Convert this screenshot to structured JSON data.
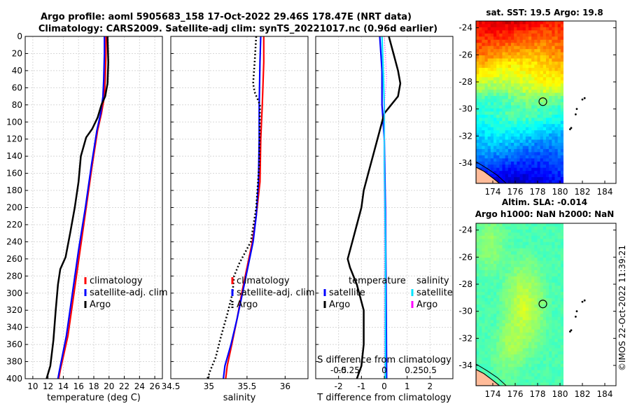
{
  "title": {
    "line1": "Argo profile: aoml 5905683_158 17-Oct-2022 29.46S 178.47E (NRT data)",
    "line2": "Climatology: CARS2009. Satellite-adj clim: synTS_20221017.nc (0.96d earlier)"
  },
  "copyright": "©IMOS 22-Oct-2022 11:39:21",
  "colors": {
    "climatology": "#ff0000",
    "satellite": "#0000ff",
    "argo": "#000000",
    "sat_s": "#00e5ff",
    "argo_s": "#ff00ff",
    "land": "#ffbb99"
  },
  "chart_data": [
    {
      "type": "line",
      "id": "temperature",
      "xlabel": "temperature (deg C)",
      "xlim": [
        9,
        27
      ],
      "xticks": [
        10,
        12,
        14,
        16,
        18,
        20,
        22,
        24,
        26
      ],
      "ylim": [
        400,
        0
      ],
      "yticks": [
        0,
        20,
        40,
        60,
        80,
        100,
        120,
        140,
        160,
        180,
        200,
        220,
        240,
        260,
        280,
        300,
        320,
        340,
        360,
        380,
        400
      ],
      "grid": true,
      "legend": {
        "entries": [
          "climatology",
          "satellite-adj. clim",
          "Argo"
        ],
        "placement": "lower-right"
      },
      "series": [
        {
          "name": "climatology",
          "color": "#ff0000",
          "style": "solid",
          "points": [
            [
              19.6,
              0
            ],
            [
              19.6,
              20
            ],
            [
              19.5,
              50
            ],
            [
              19.4,
              70
            ],
            [
              19.0,
              90
            ],
            [
              18.5,
              110
            ],
            [
              17.8,
              150
            ],
            [
              17.0,
              200
            ],
            [
              16.2,
              250
            ],
            [
              15.4,
              300
            ],
            [
              14.6,
              350
            ],
            [
              13.6,
              390
            ],
            [
              13.4,
              400
            ]
          ]
        },
        {
          "name": "satellite-adj. clim",
          "color": "#0000ff",
          "style": "solid",
          "points": [
            [
              19.4,
              0
            ],
            [
              19.4,
              20
            ],
            [
              19.3,
              50
            ],
            [
              19.2,
              70
            ],
            [
              18.9,
              90
            ],
            [
              18.4,
              110
            ],
            [
              17.7,
              150
            ],
            [
              16.9,
              200
            ],
            [
              16.0,
              250
            ],
            [
              15.2,
              300
            ],
            [
              14.4,
              350
            ],
            [
              13.5,
              390
            ],
            [
              13.3,
              400
            ]
          ]
        },
        {
          "name": "Argo",
          "color": "#000000",
          "style": "solid",
          "points": [
            [
              19.8,
              0
            ],
            [
              19.9,
              30
            ],
            [
              19.8,
              55
            ],
            [
              19.5,
              70
            ],
            [
              19.0,
              80
            ],
            [
              18.5,
              95
            ],
            [
              17.8,
              108
            ],
            [
              17.0,
              118
            ],
            [
              16.3,
              140
            ],
            [
              16.0,
              170
            ],
            [
              15.5,
              200
            ],
            [
              14.9,
              230
            ],
            [
              14.3,
              258
            ],
            [
              13.6,
              272
            ],
            [
              13.3,
              290
            ],
            [
              13.0,
              320
            ],
            [
              12.7,
              355
            ],
            [
              12.3,
              385
            ],
            [
              11.8,
              400
            ]
          ]
        }
      ]
    },
    {
      "type": "line",
      "id": "salinity",
      "xlabel": "salinity",
      "xlim": [
        34.5,
        36.3
      ],
      "xticks": [
        34.5,
        35,
        35.5,
        36
      ],
      "xtick_labels": [
        "34.5",
        "35",
        "35.5",
        "36"
      ],
      "ylim": [
        400,
        0
      ],
      "grid": true,
      "legend": {
        "entries": [
          "climatology",
          "satellite-adj. clim",
          "Argo"
        ],
        "placement": "lower-right"
      },
      "series": [
        {
          "name": "climatology",
          "color": "#ff0000",
          "style": "solid",
          "points": [
            [
              35.72,
              0
            ],
            [
              35.72,
              30
            ],
            [
              35.7,
              80
            ],
            [
              35.68,
              120
            ],
            [
              35.67,
              170
            ],
            [
              35.62,
              210
            ],
            [
              35.57,
              240
            ],
            [
              35.5,
              270
            ],
            [
              35.43,
              300
            ],
            [
              35.37,
              330
            ],
            [
              35.3,
              360
            ],
            [
              35.24,
              385
            ],
            [
              35.22,
              400
            ]
          ]
        },
        {
          "name": "satellite-adj. clim",
          "color": "#0000ff",
          "style": "solid",
          "points": [
            [
              35.68,
              0
            ],
            [
              35.67,
              30
            ],
            [
              35.66,
              80
            ],
            [
              35.66,
              120
            ],
            [
              35.65,
              170
            ],
            [
              35.62,
              210
            ],
            [
              35.58,
              240
            ],
            [
              35.51,
              270
            ],
            [
              35.44,
              300
            ],
            [
              35.37,
              330
            ],
            [
              35.29,
              360
            ],
            [
              35.21,
              385
            ],
            [
              35.19,
              400
            ]
          ]
        },
        {
          "name": "Argo",
          "color": "#000000",
          "style": "dotted",
          "points": [
            [
              35.62,
              0
            ],
            [
              35.6,
              30
            ],
            [
              35.58,
              55
            ],
            [
              35.6,
              65
            ],
            [
              35.67,
              80
            ],
            [
              35.66,
              150
            ],
            [
              35.62,
              200
            ],
            [
              35.55,
              240
            ],
            [
              35.4,
              265
            ],
            [
              35.33,
              280
            ],
            [
              35.31,
              300
            ],
            [
              35.24,
              325
            ],
            [
              35.16,
              350
            ],
            [
              35.09,
              375
            ],
            [
              35.02,
              390
            ],
            [
              34.98,
              400
            ]
          ]
        }
      ]
    },
    {
      "type": "line",
      "id": "differences",
      "xlabel": "T difference from climatology",
      "xlabel_top": "S difference from climatology",
      "xlim": [
        -3,
        3
      ],
      "xticks": [
        -2,
        -1,
        0,
        1,
        2
      ],
      "s_xticks": [
        "-0.5",
        "-0.25",
        "0",
        "0.25",
        "0.5"
      ],
      "ylim": [
        400,
        0
      ],
      "grid": true,
      "legend": {
        "headers": [
          "temperature",
          "salinity"
        ],
        "left": [
          "satellite",
          "Argo"
        ],
        "right": [
          "satellite",
          "Argo"
        ],
        "placement": "lower-right"
      },
      "series": [
        {
          "name": "T satellite",
          "color": "#0000ff",
          "style": "solid",
          "points": [
            [
              -0.2,
              0
            ],
            [
              -0.1,
              40
            ],
            [
              -0.1,
              80
            ],
            [
              0,
              120
            ],
            [
              0.05,
              200
            ],
            [
              0.08,
              300
            ],
            [
              0.1,
              400
            ]
          ]
        },
        {
          "name": "T Argo",
          "color": "#000000",
          "style": "solid",
          "points": [
            [
              0.2,
              0
            ],
            [
              0.4,
              20
            ],
            [
              0.6,
              40
            ],
            [
              0.7,
              55
            ],
            [
              0.6,
              70
            ],
            [
              0.3,
              80
            ],
            [
              0,
              90
            ],
            [
              -0.2,
              110
            ],
            [
              -0.5,
              140
            ],
            [
              -0.7,
              160
            ],
            [
              -0.9,
              180
            ],
            [
              -1.0,
              200
            ],
            [
              -1.2,
              220
            ],
            [
              -1.4,
              240
            ],
            [
              -1.6,
              260
            ],
            [
              -1.5,
              270
            ],
            [
              -1.2,
              290
            ],
            [
              -0.9,
              320
            ],
            [
              -0.9,
              360
            ],
            [
              -1.0,
              385
            ],
            [
              -1.2,
              400
            ]
          ]
        },
        {
          "name": "S satellite",
          "color": "#00e5ff",
          "style": "solid",
          "points": [
            [
              -0.1,
              0
            ],
            [
              -0.05,
              40
            ],
            [
              0,
              80
            ],
            [
              0,
              150
            ],
            [
              0.05,
              250
            ],
            [
              0.05,
              400
            ]
          ]
        },
        {
          "name": "S Argo",
          "color": "#ff00ff",
          "style": "dotted",
          "points": [
            [
              0,
              0
            ],
            [
              0.05,
              20
            ],
            [
              0.1,
              50
            ],
            [
              0,
              80
            ],
            [
              0,
              400
            ]
          ]
        }
      ]
    },
    {
      "type": "heatmap",
      "id": "sst-map",
      "title": "sat. SST: 19.5 Argo: 19.8",
      "xticks": [
        174,
        176,
        178,
        180,
        182,
        184
      ],
      "yticks": [
        -24,
        -26,
        -28,
        -30,
        -32,
        -34
      ],
      "xlim": [
        172.5,
        185
      ],
      "ylim": [
        -35.5,
        -23.5
      ],
      "profile_location": [
        178.47,
        -29.46
      ]
    },
    {
      "type": "heatmap",
      "id": "sla-map",
      "title": "Altim. SLA: -0.014",
      "subtitle": "Argo h1000: NaN h2000: NaN",
      "xticks": [
        174,
        176,
        178,
        180,
        182,
        184
      ],
      "yticks": [
        -24,
        -26,
        -28,
        -30,
        -32,
        -34
      ],
      "xlim": [
        172.5,
        185
      ],
      "ylim": [
        -35.5,
        -23.5
      ],
      "profile_location": [
        178.47,
        -29.46
      ]
    }
  ]
}
